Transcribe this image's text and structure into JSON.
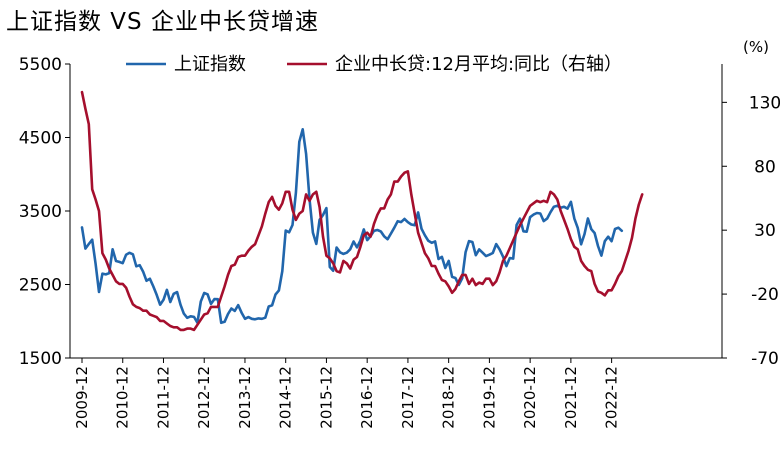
{
  "title": "上证指数 VS 企业中长贷增速",
  "chart_data": {
    "type": "line",
    "title": "上证指数 VS 企业中长贷增速",
    "y_right_unit": "(%)",
    "x_tick_labels": [
      "2009-12",
      "2010-12",
      "2011-12",
      "2012-12",
      "2013-12",
      "2014-12",
      "2015-12",
      "2016-12",
      "2017-12",
      "2018-12",
      "2019-12",
      "2020-12",
      "2021-12",
      "2022-12"
    ],
    "y_left": {
      "range": [
        1500,
        5500
      ],
      "ticks": [
        "1500",
        "2500",
        "3500",
        "4500",
        "5500"
      ]
    },
    "y_right": {
      "range": [
        -70,
        160
      ],
      "ticks": [
        "-70",
        "-20",
        "30",
        "80",
        "130"
      ]
    },
    "legend_position": "top",
    "grid": false,
    "series": [
      {
        "name": "上证指数",
        "axis": "left",
        "color": "#2166ac",
        "start": "2009-12",
        "values": [
          3277,
          2989,
          3051,
          3109,
          2781,
          2398,
          2647,
          2638,
          2655,
          2979,
          2820,
          2808,
          2790,
          2905,
          2931,
          2911,
          2747,
          2762,
          2676,
          2551,
          2577,
          2474,
          2359,
          2225,
          2292,
          2428,
          2262,
          2373,
          2397,
          2225,
          2104,
          2047,
          2068,
          2059,
          1980,
          2269,
          2385,
          2366,
          2236,
          2301,
          2300,
          1979,
          1993,
          2098,
          2174,
          2141,
          2220,
          2116,
          2034,
          2056,
          2033,
          2026,
          2039,
          2033,
          2048,
          2201,
          2217,
          2364,
          2420,
          2682,
          3234,
          3210,
          3310,
          3748,
          4441,
          4612,
          4277,
          3664,
          3206,
          3053,
          3382,
          3445,
          3539,
          2738,
          2688,
          3004,
          2938,
          2916,
          2932,
          2979,
          3085,
          3005,
          3100,
          3250,
          3104,
          3159,
          3231,
          3242,
          3223,
          3154,
          3117,
          3192,
          3273,
          3361,
          3349,
          3393,
          3348,
          3317,
          3307,
          3481,
          3259,
          3169,
          3095,
          3067,
          3087,
          2847,
          2876,
          2725,
          2821,
          2603,
          2588,
          2494,
          2585,
          2941,
          3090,
          3078,
          2899,
          2978,
          2932,
          2886,
          2905,
          2929,
          3050,
          2977,
          2880,
          2750,
          2860,
          2852,
          3310,
          3396,
          3224,
          3218,
          3415,
          3451,
          3473,
          3466,
          3363,
          3397,
          3483,
          3559,
          3571,
          3543,
          3557,
          3532,
          3625,
          3399,
          3272,
          3047,
          3186,
          3398,
          3253,
          3201,
          3024,
          2893,
          3089,
          3151,
          3089,
          3255,
          3273,
          3230
        ],
        "first_value_end": "2023-03"
      },
      {
        "name": "企业中长贷:12月平均:同比（右轴）",
        "axis": "right",
        "color": "#a50f2d",
        "start": "2009-12",
        "values": [
          138,
          125,
          113,
          62,
          54,
          45,
          12,
          7,
          0,
          -5,
          -10,
          -12,
          -12,
          -15,
          -22,
          -28,
          -30,
          -31,
          -33,
          -33,
          -36,
          -37,
          -38,
          -41,
          -41,
          -43,
          -45,
          -46,
          -46,
          -48,
          -48,
          -47,
          -47,
          -48,
          -44,
          -40,
          -36,
          -35,
          -30,
          -30,
          -30,
          -22,
          -14,
          -5,
          2,
          3,
          9,
          10,
          10,
          14,
          17,
          19,
          26,
          33,
          43,
          52,
          56,
          49,
          46,
          51,
          60,
          60,
          46,
          38,
          43,
          45,
          58,
          53,
          58,
          60,
          48,
          25,
          10,
          8,
          4,
          -2,
          -3,
          6,
          4,
          0,
          7,
          9,
          17,
          26,
          28,
          25,
          35,
          42,
          47,
          47,
          54,
          58,
          68,
          68,
          72,
          75,
          76,
          58,
          43,
          28,
          20,
          12,
          8,
          2,
          2,
          -4,
          -9,
          -10,
          -14,
          -19,
          -16,
          -10,
          -5,
          -5,
          -12,
          -8,
          -13,
          -11,
          -12,
          -8,
          -8,
          -13,
          -10,
          -3,
          6,
          10,
          16,
          22,
          28,
          34,
          39,
          44,
          49,
          51,
          53,
          52,
          53,
          52,
          60,
          58,
          54,
          45,
          38,
          31,
          23,
          17,
          15,
          6,
          2,
          -1,
          -2,
          -12,
          -18,
          -19,
          -21,
          -17,
          -17,
          -12,
          -6,
          -2,
          6,
          14,
          24,
          39,
          50,
          58
        ]
      }
    ]
  }
}
